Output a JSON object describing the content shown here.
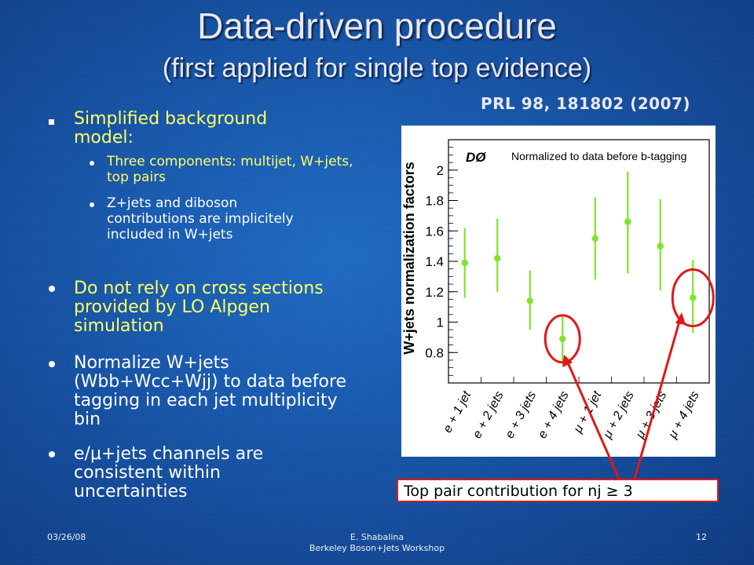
{
  "slide": {
    "title_line1": "Data-driven procedure",
    "title_line2": "(first applied for single top evidence)",
    "reference": "PRL 98, 181802 (2007)",
    "bullets": {
      "b1": "Simplified background model:",
      "b1_sub1": "Three components: multijet, W+jets, top pairs",
      "b1_sub2": "Z+jets and diboson contributions are implicitely included in W+jets",
      "b2": "Do not rely on cross sections provided by LO Alpgen simulation",
      "b3": "Normalize W+jets (Wbb+Wcc+Wjj) to data before tagging in each jet multiplicity bin",
      "b4": "e/μ+jets channels are consistent within uncertainties"
    },
    "callout": "Top pair contribution for nj ≥ 3",
    "footer": {
      "date": "03/26/08",
      "author": "E. Shabalina",
      "event": "Berkeley Boson+Jets Workshop",
      "page": "12"
    }
  },
  "chart_data": {
    "type": "scatter",
    "experiment_label": "DØ",
    "title": "Normalized to data before b-tagging",
    "ylabel": "W+jets normalization factors",
    "categories": [
      "e + 1 jet",
      "e + 2 jets",
      "e + 3 jets",
      "e + 4 jets",
      "μ + 1 jet",
      "μ + 2 jets",
      "μ + 3 jets",
      "μ + 4 jets"
    ],
    "values": [
      1.39,
      1.42,
      1.14,
      0.89,
      1.55,
      1.66,
      1.5,
      1.16
    ],
    "err_low": [
      1.16,
      1.2,
      0.95,
      0.73,
      1.28,
      1.32,
      1.21,
      0.93
    ],
    "err_high": [
      1.62,
      1.68,
      1.34,
      1.04,
      1.82,
      1.99,
      1.81,
      1.41
    ],
    "yticks": [
      "0.8",
      "1",
      "1.2",
      "1.4",
      "1.6",
      "1.8",
      "2"
    ],
    "ylim": [
      0.6,
      2.2
    ],
    "marker_color": "#7fe52a",
    "highlight_color": "#e01818",
    "highlighted_categories": [
      "e + 4 jets",
      "μ + 4 jets"
    ]
  }
}
